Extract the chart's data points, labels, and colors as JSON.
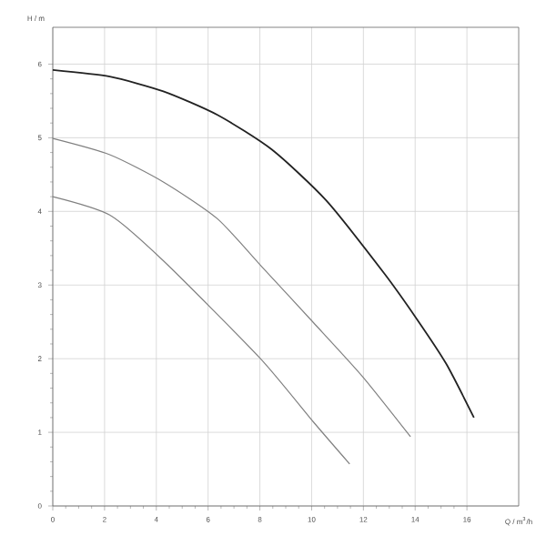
{
  "chart_data": {
    "type": "line",
    "xlabel": "Q / m$^{3}$/h",
    "ylabel": "H / m",
    "xlim": [
      0,
      18
    ],
    "ylim": [
      0,
      6.5
    ],
    "xticks": [
      0,
      2,
      4,
      6,
      8,
      10,
      12,
      14,
      16
    ],
    "yticks": [
      0,
      1,
      2,
      3,
      4,
      5,
      6
    ],
    "grid": true,
    "series": [
      {
        "color": "#222222",
        "x": [
          0,
          2.2,
          4.27,
          6.36,
          8.46,
          10.56,
          12.8,
          14.06,
          15.2,
          16.27
        ],
        "values": [
          5.92,
          5.83,
          5.63,
          5.31,
          4.84,
          4.15,
          3.16,
          2.54,
          1.93,
          1.2
        ]
      },
      {
        "color": "#808080",
        "x": [
          0,
          2.2,
          4.27,
          6.36,
          8.1,
          10.07,
          11.96,
          13.82
        ],
        "values": [
          4.99,
          4.77,
          4.4,
          3.9,
          3.24,
          2.49,
          1.76,
          0.94
        ]
      },
      {
        "color": "#808080",
        "x": [
          0,
          2.2,
          4.27,
          8.0,
          10.07,
          11.47
        ],
        "values": [
          4.2,
          3.95,
          3.33,
          2.01,
          1.14,
          0.57
        ]
      }
    ]
  }
}
